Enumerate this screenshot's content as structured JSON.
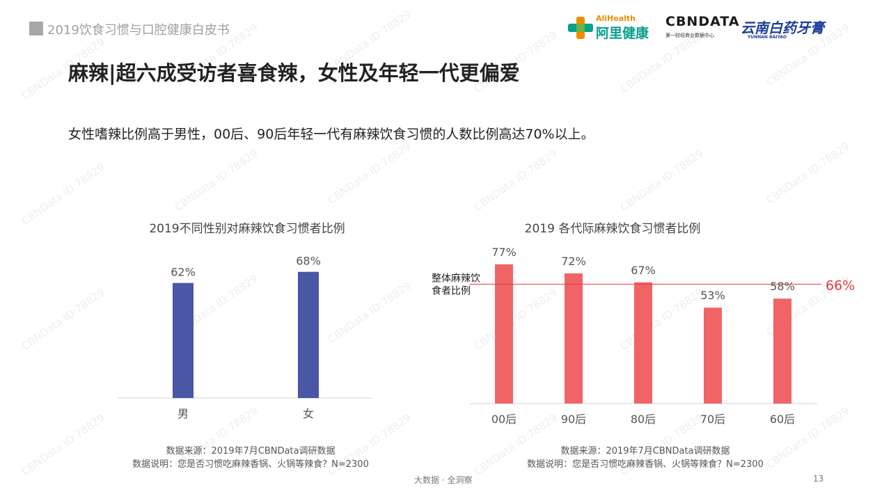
{
  "header": {
    "title": "2019饮食习惯与口腔健康白皮书"
  },
  "logos": {
    "alihealth_en": "AliHealth",
    "alihealth_cn": "阿里健康",
    "cbndata": "CBNDATA",
    "cbndata_sub": "第一财经商业数据中心",
    "yunnan_cn": "云南白药牙膏",
    "yunnan_en": "YUNNAN BAIYAO"
  },
  "main_title": "麻辣|超六成受访者喜食辣，女性及年轻一代更偏爱",
  "subtitle": "女性嗜辣比例高于男性，00后、90后年轻一代有麻辣饮食习惯的人数比例高达70%以上。",
  "chart_data": [
    {
      "type": "bar",
      "title": "2019不同性别对麻辣饮食习惯者比例",
      "categories": [
        "男",
        "女"
      ],
      "values": [
        62,
        68
      ],
      "value_labels": [
        "62%",
        "68%"
      ],
      "unit": "%",
      "ylim": [
        0,
        75
      ],
      "color": "#4a56a6"
    },
    {
      "type": "bar",
      "title": "2019 各代际麻辣饮食习惯者比例",
      "categories": [
        "00后",
        "90后",
        "80后",
        "70后",
        "60后"
      ],
      "values": [
        77,
        72,
        67,
        53,
        58
      ],
      "value_labels": [
        "77%",
        "72%",
        "67%",
        "53%",
        "58%"
      ],
      "unit": "%",
      "ylim": [
        0,
        80
      ],
      "color": "#f06467",
      "reference_line": {
        "value": 66,
        "value_label": "66%",
        "label": "整体麻辣饮食者比例",
        "color": "#e8383d"
      }
    }
  ],
  "notes": {
    "left": [
      "数据来源：2019年7月CBNData调研数据",
      "数据说明：您是否习惯吃麻辣香锅、火锅等辣食？N=2300"
    ],
    "right": [
      "数据来源：2019年7月CBNData调研数据",
      "数据说明：您是否习惯吃麻辣香锅、火锅等辣食？N=2300"
    ]
  },
  "footer": {
    "text": "大数据 · 全洞察",
    "page": "13"
  },
  "watermark": "CBNData ID:78829"
}
